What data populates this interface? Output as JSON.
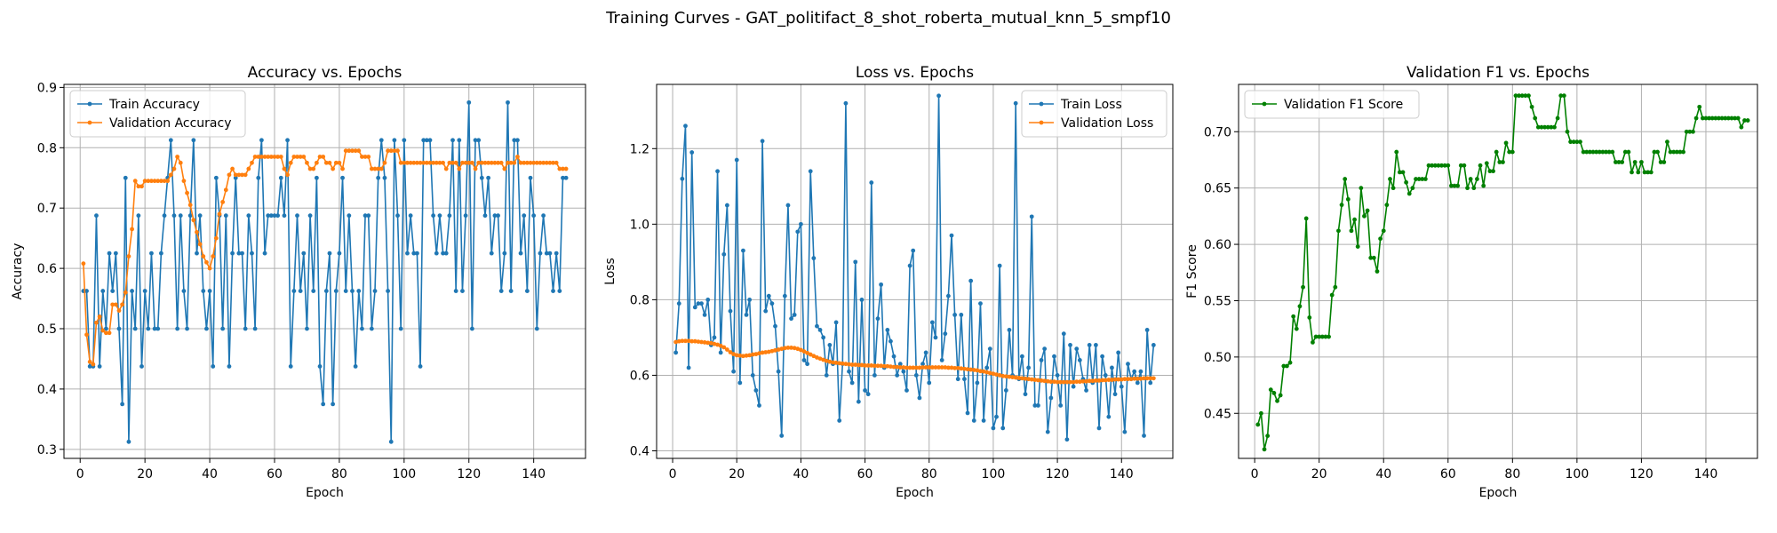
{
  "figure": {
    "suptitle": "Training Curves - GAT_politifact_8_shot_roberta_mutual_knn_5_smpf10"
  },
  "colors": {
    "blue": "#1f77b4",
    "orange": "#ff7f0e",
    "green": "#008000"
  },
  "chart_data": [
    {
      "type": "line",
      "title": "Accuracy vs. Epochs",
      "xlabel": "Epoch",
      "ylabel": "Accuracy",
      "xlim": [
        -5,
        156
      ],
      "ylim": [
        0.285,
        0.905
      ],
      "xticks": [
        0,
        20,
        40,
        60,
        80,
        100,
        120,
        140
      ],
      "yticks": [
        0.3,
        0.4,
        0.5,
        0.6,
        0.7,
        0.8,
        0.9
      ],
      "ytick_labels": [
        "0.3",
        "0.4",
        "0.5",
        "0.6",
        "0.7",
        "0.8",
        "0.9"
      ],
      "grid": true,
      "legend_position": "upper-left",
      "series": [
        {
          "name": "Train Accuracy",
          "color": "#1f77b4",
          "y": [
            0.5625,
            0.5625,
            0.4375,
            0.4375,
            0.6875,
            0.4375,
            0.5625,
            0.5,
            0.625,
            0.5625,
            0.625,
            0.5,
            0.375,
            0.75,
            0.3125,
            0.5625,
            0.5,
            0.6875,
            0.4375,
            0.5625,
            0.5,
            0.625,
            0.5,
            0.5,
            0.625,
            0.6875,
            0.75,
            0.8125,
            0.6875,
            0.5,
            0.6875,
            0.5625,
            0.5,
            0.6875,
            0.8125,
            0.625,
            0.6875,
            0.5625,
            0.5,
            0.5625,
            0.4375,
            0.75,
            0.6875,
            0.5,
            0.6875,
            0.4375,
            0.625,
            0.75,
            0.625,
            0.625,
            0.5,
            0.6875,
            0.625,
            0.5,
            0.75,
            0.8125,
            0.625,
            0.6875,
            0.6875,
            0.6875,
            0.6875,
            0.75,
            0.6875,
            0.8125,
            0.4375,
            0.5625,
            0.6875,
            0.5625,
            0.625,
            0.5,
            0.6875,
            0.5625,
            0.75,
            0.4375,
            0.375,
            0.5625,
            0.625,
            0.375,
            0.5625,
            0.625,
            0.75,
            0.5625,
            0.6875,
            0.5625,
            0.4375,
            0.5625,
            0.5,
            0.6875,
            0.6875,
            0.5,
            0.5625,
            0.75,
            0.8125,
            0.75,
            0.5625,
            0.3125,
            0.8125,
            0.6875,
            0.5,
            0.8125,
            0.625,
            0.6875,
            0.625,
            0.625,
            0.4375,
            0.8125,
            0.8125,
            0.8125,
            0.6875,
            0.625,
            0.6875,
            0.625,
            0.625,
            0.6875,
            0.8125,
            0.5625,
            0.8125,
            0.5625,
            0.6875,
            0.875,
            0.5,
            0.8125,
            0.8125,
            0.75,
            0.6875,
            0.75,
            0.625,
            0.6875,
            0.6875,
            0.5625,
            0.625,
            0.875,
            0.5625,
            0.8125,
            0.8125,
            0.625,
            0.6875,
            0.5625,
            0.75,
            0.6875,
            0.5,
            0.625,
            0.6875,
            0.625,
            0.625,
            0.5625,
            0.625,
            0.5625,
            0.75,
            0.75
          ]
        },
        {
          "name": "Validation Accuracy",
          "color": "#ff7f0e",
          "y": [
            0.608,
            0.49,
            0.445,
            0.441,
            0.51,
            0.52,
            0.497,
            0.493,
            0.493,
            0.54,
            0.54,
            0.53,
            0.54,
            0.56,
            0.62,
            0.665,
            0.745,
            0.736,
            0.736,
            0.745,
            0.745,
            0.745,
            0.745,
            0.745,
            0.745,
            0.745,
            0.745,
            0.755,
            0.765,
            0.785,
            0.775,
            0.745,
            0.725,
            0.705,
            0.68,
            0.66,
            0.64,
            0.62,
            0.61,
            0.6,
            0.62,
            0.65,
            0.69,
            0.71,
            0.73,
            0.755,
            0.765,
            0.755,
            0.755,
            0.755,
            0.755,
            0.765,
            0.775,
            0.785,
            0.785,
            0.785,
            0.785,
            0.785,
            0.785,
            0.785,
            0.785,
            0.785,
            0.765,
            0.755,
            0.775,
            0.785,
            0.785,
            0.785,
            0.785,
            0.775,
            0.765,
            0.765,
            0.775,
            0.785,
            0.785,
            0.775,
            0.775,
            0.765,
            0.775,
            0.775,
            0.765,
            0.795,
            0.795,
            0.795,
            0.795,
            0.795,
            0.785,
            0.785,
            0.785,
            0.765,
            0.765,
            0.765,
            0.765,
            0.775,
            0.795,
            0.795,
            0.795,
            0.795,
            0.775,
            0.775,
            0.775,
            0.775,
            0.775,
            0.775,
            0.775,
            0.775,
            0.775,
            0.775,
            0.775,
            0.775,
            0.775,
            0.775,
            0.765,
            0.775,
            0.775,
            0.775,
            0.765,
            0.775,
            0.775,
            0.775,
            0.775,
            0.765,
            0.775,
            0.775,
            0.775,
            0.775,
            0.775,
            0.775,
            0.775,
            0.775,
            0.765,
            0.775,
            0.775,
            0.775,
            0.785,
            0.775,
            0.775,
            0.775,
            0.775,
            0.775,
            0.775,
            0.775,
            0.775,
            0.775,
            0.775,
            0.775,
            0.775,
            0.765,
            0.765,
            0.765
          ]
        }
      ]
    },
    {
      "type": "line",
      "title": "Loss vs. Epochs",
      "xlabel": "Epoch",
      "ylabel": "Loss",
      "xlim": [
        -5,
        156
      ],
      "ylim": [
        0.38,
        1.37
      ],
      "xticks": [
        0,
        20,
        40,
        60,
        80,
        100,
        120,
        140
      ],
      "yticks": [
        0.4,
        0.6,
        0.8,
        1.0,
        1.2
      ],
      "ytick_labels": [
        "0.4",
        "0.6",
        "0.8",
        "1.0",
        "1.2"
      ],
      "grid": true,
      "legend_position": "upper-right",
      "series": [
        {
          "name": "Train Loss",
          "color": "#1f77b4",
          "y": [
            0.66,
            0.79,
            1.12,
            1.26,
            0.62,
            1.19,
            0.78,
            0.79,
            0.79,
            0.76,
            0.8,
            0.68,
            0.7,
            1.14,
            0.66,
            0.92,
            1.05,
            0.77,
            0.61,
            1.17,
            0.58,
            0.93,
            0.76,
            0.8,
            0.6,
            0.56,
            0.52,
            1.22,
            0.77,
            0.81,
            0.79,
            0.73,
            0.61,
            0.44,
            0.81,
            1.05,
            0.75,
            0.76,
            0.98,
            1.0,
            0.64,
            0.63,
            1.14,
            0.91,
            0.73,
            0.72,
            0.7,
            0.6,
            0.68,
            0.63,
            0.74,
            0.48,
            0.63,
            1.32,
            0.61,
            0.58,
            0.9,
            0.53,
            0.8,
            0.56,
            0.55,
            1.11,
            0.6,
            0.75,
            0.84,
            0.62,
            0.72,
            0.69,
            0.65,
            0.6,
            0.63,
            0.61,
            0.56,
            0.89,
            0.93,
            0.6,
            0.54,
            0.63,
            0.66,
            0.58,
            0.74,
            0.7,
            1.34,
            0.64,
            0.71,
            0.81,
            0.97,
            0.76,
            0.59,
            0.76,
            0.59,
            0.5,
            0.85,
            0.48,
            0.58,
            0.79,
            0.48,
            0.62,
            0.67,
            0.46,
            0.49,
            0.89,
            0.46,
            0.56,
            0.72,
            0.6,
            1.32,
            0.59,
            0.65,
            0.55,
            0.62,
            1.02,
            0.52,
            0.52,
            0.64,
            0.67,
            0.45,
            0.54,
            0.65,
            0.6,
            0.52,
            0.71,
            0.43,
            0.68,
            0.57,
            0.67,
            0.64,
            0.59,
            0.56,
            0.68,
            0.58,
            0.68,
            0.46,
            0.65,
            0.6,
            0.49,
            0.62,
            0.55,
            0.66,
            0.57,
            0.45,
            0.63,
            0.59,
            0.61,
            0.58,
            0.61,
            0.44,
            0.72,
            0.58,
            0.68
          ]
        },
        {
          "name": "Validation Loss",
          "color": "#ff7f0e",
          "y": [
            0.688,
            0.69,
            0.691,
            0.691,
            0.691,
            0.69,
            0.69,
            0.689,
            0.688,
            0.687,
            0.686,
            0.685,
            0.683,
            0.681,
            0.678,
            0.674,
            0.668,
            0.661,
            0.656,
            0.653,
            0.652,
            0.651,
            0.652,
            0.653,
            0.655,
            0.656,
            0.658,
            0.66,
            0.661,
            0.662,
            0.664,
            0.666,
            0.668,
            0.67,
            0.672,
            0.673,
            0.673,
            0.672,
            0.67,
            0.667,
            0.663,
            0.659,
            0.655,
            0.651,
            0.647,
            0.644,
            0.641,
            0.638,
            0.636,
            0.634,
            0.633,
            0.632,
            0.631,
            0.63,
            0.629,
            0.628,
            0.628,
            0.627,
            0.627,
            0.626,
            0.626,
            0.626,
            0.625,
            0.625,
            0.625,
            0.624,
            0.624,
            0.623,
            0.622,
            0.622,
            0.621,
            0.621,
            0.62,
            0.62,
            0.62,
            0.62,
            0.62,
            0.621,
            0.621,
            0.621,
            0.621,
            0.621,
            0.621,
            0.621,
            0.621,
            0.62,
            0.62,
            0.619,
            0.619,
            0.618,
            0.617,
            0.616,
            0.615,
            0.614,
            0.613,
            0.611,
            0.61,
            0.608,
            0.606,
            0.604,
            0.602,
            0.6,
            0.598,
            0.597,
            0.596,
            0.595,
            0.594,
            0.593,
            0.592,
            0.591,
            0.59,
            0.589,
            0.588,
            0.587,
            0.586,
            0.585,
            0.584,
            0.583,
            0.583,
            0.582,
            0.582,
            0.582,
            0.582,
            0.582,
            0.582,
            0.583,
            0.583,
            0.584,
            0.584,
            0.585,
            0.585,
            0.586,
            0.586,
            0.587,
            0.587,
            0.588,
            0.588,
            0.589,
            0.589,
            0.589,
            0.59,
            0.59,
            0.59,
            0.591,
            0.591,
            0.591,
            0.592,
            0.592,
            0.592,
            0.592
          ]
        }
      ]
    },
    {
      "type": "line",
      "title": "Validation F1 vs. Epochs",
      "xlabel": "Epoch",
      "ylabel": "F1 Score",
      "xlim": [
        -5,
        156
      ],
      "ylim": [
        0.41,
        0.742
      ],
      "xticks": [
        0,
        20,
        40,
        60,
        80,
        100,
        120,
        140
      ],
      "yticks": [
        0.45,
        0.5,
        0.55,
        0.6,
        0.65,
        0.7
      ],
      "ytick_labels": [
        "0.45",
        "0.50",
        "0.55",
        "0.60",
        "0.65",
        "0.70"
      ],
      "grid": true,
      "legend_position": "upper-left",
      "series": [
        {
          "name": "Validation F1 Score",
          "color": "#008000",
          "y": [
            0.44,
            0.45,
            0.418,
            0.43,
            0.471,
            0.468,
            0.461,
            0.466,
            0.492,
            0.492,
            0.495,
            0.536,
            0.525,
            0.545,
            0.562,
            0.623,
            0.535,
            0.513,
            0.518,
            0.518,
            0.518,
            0.518,
            0.518,
            0.555,
            0.562,
            0.612,
            0.635,
            0.658,
            0.64,
            0.612,
            0.622,
            0.598,
            0.65,
            0.625,
            0.63,
            0.588,
            0.588,
            0.576,
            0.605,
            0.612,
            0.635,
            0.658,
            0.65,
            0.682,
            0.664,
            0.664,
            0.655,
            0.645,
            0.65,
            0.658,
            0.658,
            0.658,
            0.658,
            0.67,
            0.67,
            0.67,
            0.67,
            0.67,
            0.67,
            0.67,
            0.652,
            0.652,
            0.652,
            0.67,
            0.67,
            0.65,
            0.658,
            0.65,
            0.658,
            0.67,
            0.652,
            0.672,
            0.665,
            0.665,
            0.682,
            0.673,
            0.673,
            0.69,
            0.682,
            0.682,
            0.732,
            0.732,
            0.732,
            0.732,
            0.732,
            0.722,
            0.712,
            0.704,
            0.704,
            0.704,
            0.704,
            0.704,
            0.704,
            0.712,
            0.732,
            0.732,
            0.7,
            0.691,
            0.691,
            0.691,
            0.691,
            0.682,
            0.682,
            0.682,
            0.682,
            0.682,
            0.682,
            0.682,
            0.682,
            0.682,
            0.682,
            0.673,
            0.673,
            0.673,
            0.682,
            0.682,
            0.664,
            0.673,
            0.664,
            0.673,
            0.664,
            0.664,
            0.664,
            0.682,
            0.682,
            0.673,
            0.673,
            0.691,
            0.682,
            0.682,
            0.682,
            0.682,
            0.682,
            0.7,
            0.7,
            0.7,
            0.712,
            0.722,
            0.712,
            0.712,
            0.712,
            0.712,
            0.712,
            0.712,
            0.712,
            0.712,
            0.712,
            0.712,
            0.712,
            0.712,
            0.704,
            0.71,
            0.71
          ]
        }
      ]
    }
  ]
}
